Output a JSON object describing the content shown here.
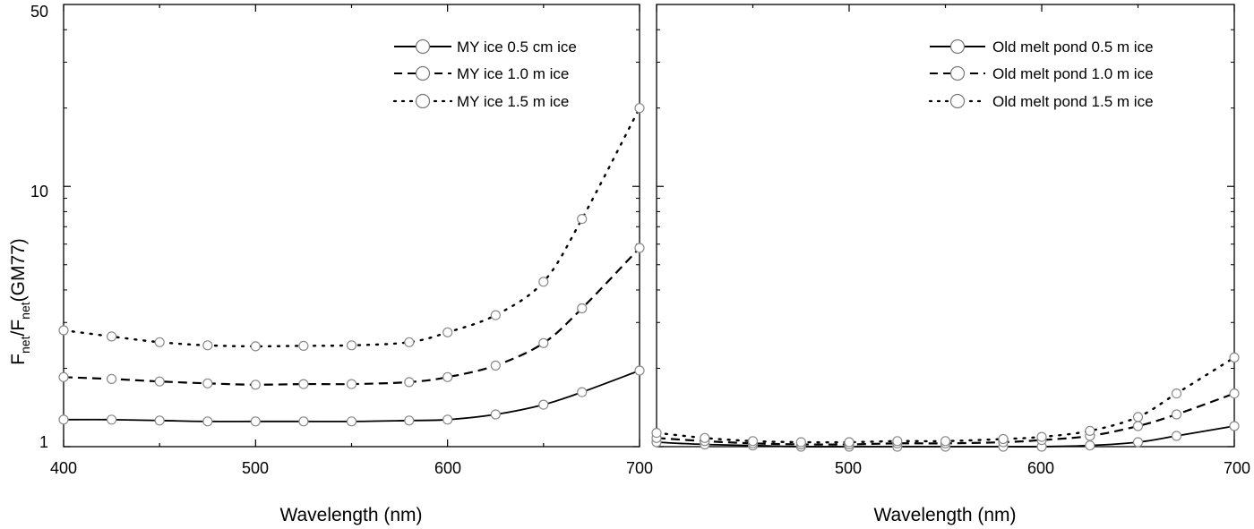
{
  "chart_data": [
    {
      "type": "line",
      "xlabel": "Wavelength (nm)",
      "ylabel": {
        "main": "F",
        "sub1": "net",
        "slash": "/F",
        "sub2": "net",
        "tail": "(GM77)"
      },
      "xlim": [
        400,
        700
      ],
      "ylim": [
        1,
        50
      ],
      "yscale": "log",
      "x_ticks": [
        "400",
        "500",
        "600",
        "700"
      ],
      "y_ticks": [
        "1",
        "10",
        "50"
      ],
      "legend_position": "top-right",
      "series": [
        {
          "name": "MY ice 0.5 cm ice",
          "style": "solid",
          "x": [
            400,
            425,
            450,
            475,
            500,
            525,
            550,
            580,
            600,
            625,
            650,
            670,
            700
          ],
          "y": [
            1.27,
            1.27,
            1.26,
            1.25,
            1.25,
            1.25,
            1.25,
            1.26,
            1.27,
            1.33,
            1.45,
            1.62,
            1.96
          ]
        },
        {
          "name": "MY ice 1.0 m ice",
          "style": "dashed",
          "x": [
            400,
            425,
            450,
            475,
            500,
            525,
            550,
            580,
            600,
            625,
            650,
            670,
            700
          ],
          "y": [
            1.85,
            1.82,
            1.78,
            1.75,
            1.73,
            1.74,
            1.74,
            1.77,
            1.85,
            2.05,
            2.5,
            3.4,
            5.8
          ]
        },
        {
          "name": "MY ice 1.5 m ice",
          "style": "dotted",
          "x": [
            400,
            425,
            450,
            475,
            500,
            525,
            550,
            580,
            600,
            625,
            650,
            670,
            700
          ],
          "y": [
            2.8,
            2.65,
            2.52,
            2.45,
            2.43,
            2.44,
            2.45,
            2.52,
            2.75,
            3.2,
            4.3,
            7.5,
            20
          ]
        }
      ]
    },
    {
      "type": "line",
      "xlabel": "Wavelength (nm)",
      "xlim": [
        400,
        700
      ],
      "ylim": [
        1,
        50
      ],
      "yscale": "log",
      "x_ticks": [
        "500",
        "600",
        "700"
      ],
      "x_last_label": "700",
      "legend_position": "top-right",
      "series": [
        {
          "name": "Old melt pond 0.5 m ice",
          "style": "solid",
          "x": [
            400,
            425,
            450,
            475,
            500,
            525,
            550,
            580,
            600,
            625,
            650,
            670,
            700
          ],
          "y": [
            1.04,
            1.02,
            1.01,
            1.0,
            1.0,
            1.0,
            1.0,
            1.0,
            1.0,
            1.01,
            1.04,
            1.1,
            1.2
          ]
        },
        {
          "name": "Old melt pond 1.0 m ice",
          "style": "dashed",
          "x": [
            400,
            425,
            450,
            475,
            500,
            525,
            550,
            580,
            600,
            625,
            650,
            670,
            700
          ],
          "y": [
            1.08,
            1.05,
            1.03,
            1.02,
            1.02,
            1.03,
            1.03,
            1.04,
            1.06,
            1.1,
            1.2,
            1.33,
            1.6
          ]
        },
        {
          "name": "Old melt pond 1.5 m ice",
          "style": "dotted",
          "x": [
            400,
            425,
            450,
            475,
            500,
            525,
            550,
            580,
            600,
            625,
            650,
            670,
            700
          ],
          "y": [
            1.13,
            1.08,
            1.05,
            1.04,
            1.04,
            1.05,
            1.05,
            1.07,
            1.09,
            1.15,
            1.3,
            1.6,
            2.2
          ]
        }
      ]
    }
  ]
}
